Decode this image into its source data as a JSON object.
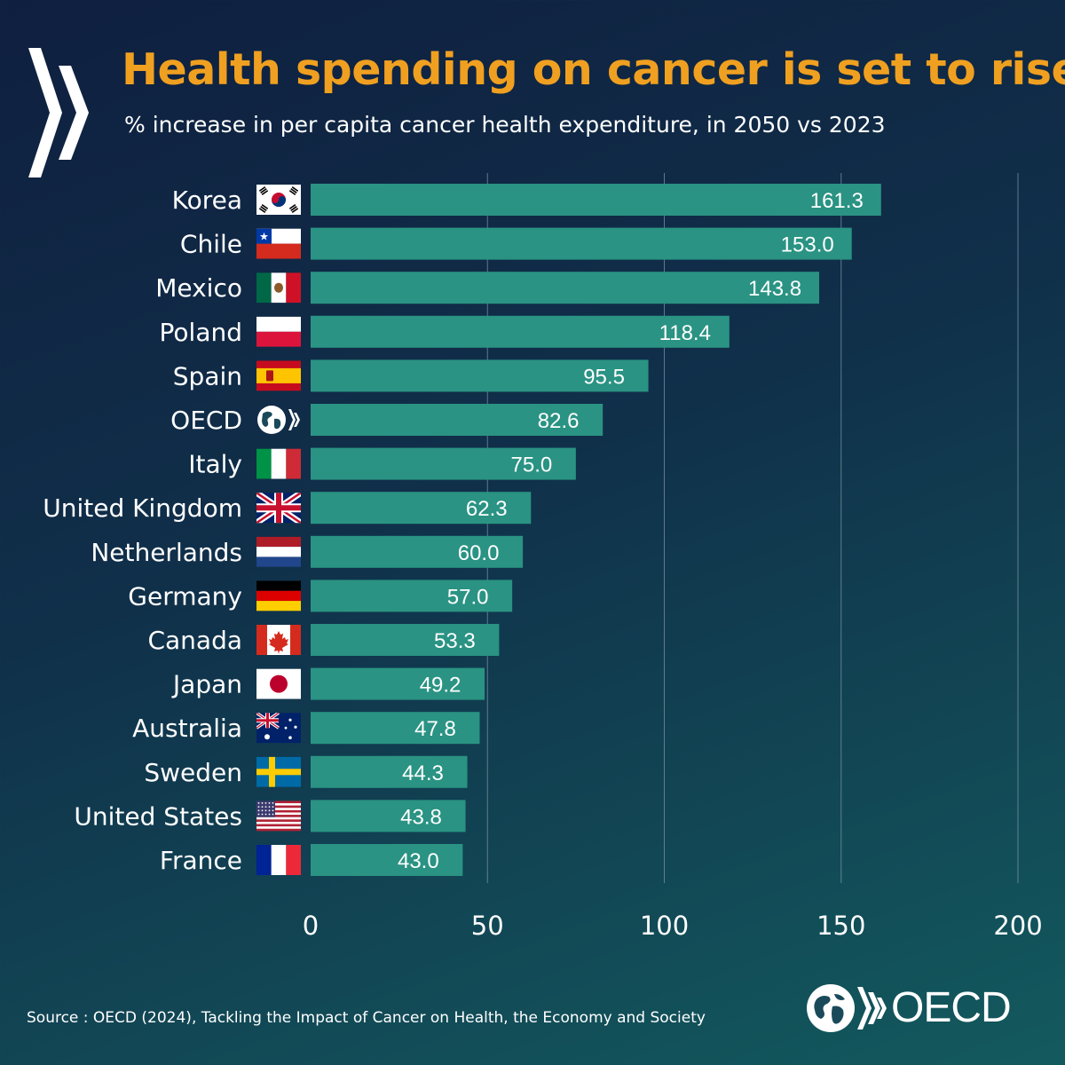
{
  "header": {
    "title": "Health spending on cancer is set to rise",
    "subtitle": "% increase in per capita cancer health expenditure, in 2050 vs 2023"
  },
  "footer": {
    "source": "Source : OECD (2024), Tackling the Impact of Cancer on Health, the Economy and Society",
    "brand": "OECD"
  },
  "colors": {
    "bar": "#2a9383",
    "title": "#f0a020",
    "text": "#ffffff",
    "grid": "#7f99a8"
  },
  "chart_data": {
    "type": "bar",
    "orientation": "horizontal",
    "title": "Health spending on cancer is set to rise",
    "subtitle": "% increase in per capita cancer health expenditure, in 2050 vs 2023",
    "categories": [
      "Korea",
      "Chile",
      "Mexico",
      "Poland",
      "Spain",
      "OECD",
      "Italy",
      "United Kingdom",
      "Netherlands",
      "Germany",
      "Canada",
      "Japan",
      "Australia",
      "Sweden",
      "United States",
      "France"
    ],
    "flags": [
      "korea-flag-icon",
      "chile-flag-icon",
      "mexico-flag-icon",
      "poland-flag-icon",
      "spain-flag-icon",
      "oecd-globe-icon",
      "italy-flag-icon",
      "uk-flag-icon",
      "netherlands-flag-icon",
      "germany-flag-icon",
      "canada-flag-icon",
      "japan-flag-icon",
      "australia-flag-icon",
      "sweden-flag-icon",
      "usa-flag-icon",
      "france-flag-icon"
    ],
    "values": [
      161.3,
      153.0,
      143.8,
      118.4,
      95.5,
      82.6,
      75.0,
      62.3,
      60.0,
      57.0,
      53.3,
      49.2,
      47.8,
      44.3,
      43.8,
      43.0
    ],
    "value_labels": [
      "161.3",
      "153.0",
      "143.8",
      "118.4",
      "95.5",
      "82.6",
      "75.0",
      "62.3",
      "60.0",
      "57.0",
      "53.3",
      "49.2",
      "47.8",
      "44.3",
      "43.8",
      "43.0"
    ],
    "xlim": [
      0,
      200
    ],
    "xticks": [
      0,
      50,
      100,
      150,
      200
    ],
    "xtick_labels": [
      "0",
      "50",
      "100",
      "150",
      "200"
    ],
    "grid": true,
    "xlabel": "",
    "ylabel": ""
  }
}
